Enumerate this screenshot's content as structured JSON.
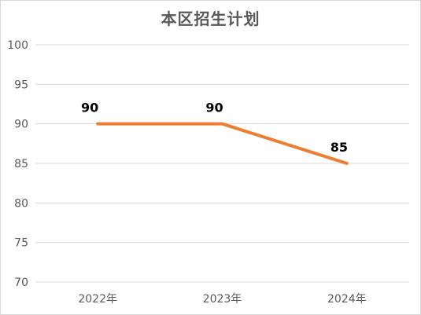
{
  "chart_data": {
    "type": "line",
    "title": "本区招生计划",
    "categories": [
      "2022年",
      "2023年",
      "2024年"
    ],
    "values": [
      90,
      90,
      85
    ],
    "data_labels": [
      "90",
      "90",
      "85"
    ],
    "yticks": [
      "100",
      "95",
      "90",
      "85",
      "80",
      "75",
      "70"
    ],
    "ylim": [
      70,
      100
    ],
    "grid": true,
    "legend": "none",
    "line_color": "#ED7D31",
    "grid_color": "#D9D9D9"
  }
}
